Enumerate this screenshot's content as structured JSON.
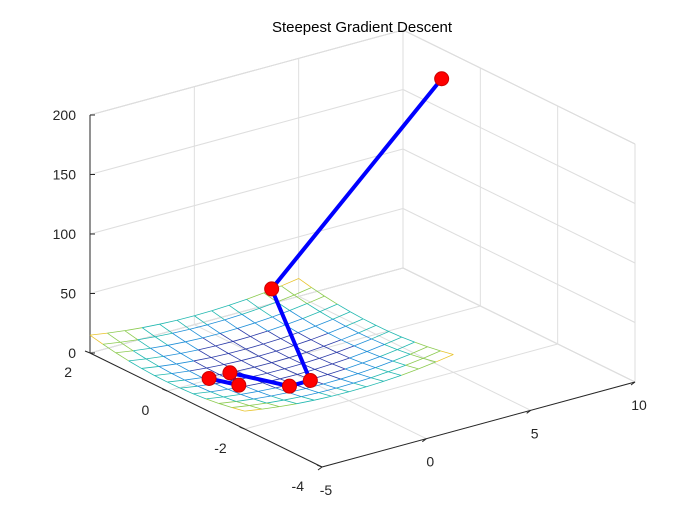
{
  "chart_data": {
    "type": "scatter",
    "title": "Steepest Gradient Descent",
    "xlabel": "",
    "ylabel": "",
    "zlabel": "",
    "xlim": [
      -5,
      10
    ],
    "ylim": [
      -4,
      2
    ],
    "zlim": [
      0,
      200
    ],
    "x_ticks": [
      -5,
      0,
      5,
      10
    ],
    "y_ticks": [
      -4,
      -2,
      0,
      2
    ],
    "z_ticks": [
      0,
      50,
      100,
      150,
      200
    ],
    "x_tick_labels": [
      "-5",
      "0",
      "5",
      "10"
    ],
    "y_tick_labels": [
      "-4",
      "-2",
      "0",
      "2"
    ],
    "z_tick_labels": [
      "0",
      "50",
      "100",
      "150",
      "200"
    ],
    "grid": true,
    "surface": {
      "type": "mesh",
      "x_range": [
        -5,
        5
      ],
      "y_range": [
        -2,
        2
      ],
      "z_range": [
        0,
        15
      ],
      "colormap": [
        "#2b3aa8",
        "#1f8fd8",
        "#22b8b0",
        "#8ccb50",
        "#e8c32a"
      ]
    },
    "series": [
      {
        "type": "line+markers",
        "line_color": "#0000ff",
        "marker_color": "#ff0000",
        "points": [
          {
            "x": 10,
            "y": 1,
            "z": 175
          },
          {
            "x": 0,
            "y": 0,
            "z": 62
          },
          {
            "x": 0,
            "y": -1,
            "z": 1
          },
          {
            "x": -1,
            "y": -1,
            "z": 1
          },
          {
            "x": -2,
            "y": 0,
            "z": 1
          },
          {
            "x": -2.5,
            "y": -0.5,
            "z": 1
          },
          {
            "x": -3,
            "y": 0,
            "z": 1
          }
        ]
      }
    ]
  }
}
